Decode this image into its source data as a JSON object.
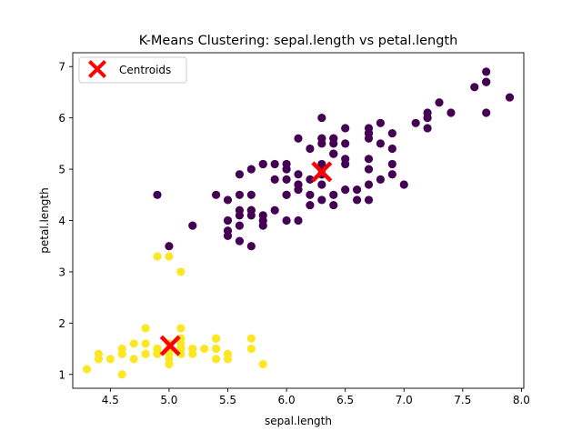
{
  "chart_data": {
    "type": "scatter",
    "title": "K-Means Clustering: sepal.length vs petal.length",
    "xlabel": "sepal.length",
    "ylabel": "petal.length",
    "xlim": [
      4.18,
      8.02
    ],
    "ylim": [
      0.73,
      7.27
    ],
    "xticks": [
      "4.5",
      "5.0",
      "5.5",
      "6.0",
      "6.5",
      "7.0",
      "7.5",
      "8.0"
    ],
    "yticks": [
      "1",
      "2",
      "3",
      "4",
      "5",
      "6",
      "7"
    ],
    "grid": false,
    "legend_position": "upper-left",
    "legend": [
      {
        "label": "Centroids",
        "marker": "X",
        "color": "#ff0000"
      }
    ],
    "colors": {
      "cluster_0": "#440154",
      "cluster_1": "#fde725",
      "centroid": "#ff0000"
    },
    "series": [
      {
        "cluster": 1,
        "points": [
          [
            5.1,
            1.4
          ],
          [
            4.9,
            1.4
          ],
          [
            4.7,
            1.3
          ],
          [
            4.6,
            1.5
          ],
          [
            5.0,
            1.4
          ],
          [
            5.4,
            1.7
          ],
          [
            4.6,
            1.4
          ],
          [
            5.0,
            1.5
          ],
          [
            4.4,
            1.4
          ],
          [
            4.9,
            1.5
          ],
          [
            5.4,
            1.5
          ],
          [
            4.8,
            1.6
          ],
          [
            4.8,
            1.4
          ],
          [
            4.3,
            1.1
          ],
          [
            5.8,
            1.2
          ],
          [
            5.7,
            1.5
          ],
          [
            5.4,
            1.3
          ],
          [
            5.1,
            1.4
          ],
          [
            5.7,
            1.7
          ],
          [
            5.1,
            1.5
          ],
          [
            5.4,
            1.7
          ],
          [
            5.1,
            1.5
          ],
          [
            4.6,
            1.0
          ],
          [
            5.1,
            1.7
          ],
          [
            4.8,
            1.9
          ],
          [
            5.0,
            1.6
          ],
          [
            5.0,
            1.6
          ],
          [
            5.2,
            1.5
          ],
          [
            5.2,
            1.4
          ],
          [
            4.7,
            1.6
          ],
          [
            4.8,
            1.6
          ],
          [
            5.4,
            1.5
          ],
          [
            5.2,
            1.5
          ],
          [
            5.5,
            1.4
          ],
          [
            4.9,
            1.5
          ],
          [
            5.0,
            1.2
          ],
          [
            5.5,
            1.3
          ],
          [
            4.9,
            1.4
          ],
          [
            4.4,
            1.3
          ],
          [
            5.1,
            1.5
          ],
          [
            5.0,
            1.3
          ],
          [
            4.5,
            1.3
          ],
          [
            4.4,
            1.3
          ],
          [
            5.0,
            1.6
          ],
          [
            5.1,
            1.9
          ],
          [
            4.8,
            1.4
          ],
          [
            5.1,
            1.6
          ],
          [
            4.6,
            1.4
          ],
          [
            5.3,
            1.5
          ],
          [
            5.0,
            1.4
          ],
          [
            5.1,
            3.0
          ],
          [
            4.9,
            3.3
          ],
          [
            5.0,
            3.3
          ]
        ]
      },
      {
        "cluster": 0,
        "points": [
          [
            7.0,
            4.7
          ],
          [
            6.4,
            4.5
          ],
          [
            6.9,
            4.9
          ],
          [
            5.5,
            4.0
          ],
          [
            6.5,
            4.6
          ],
          [
            5.7,
            4.5
          ],
          [
            6.3,
            4.7
          ],
          [
            6.6,
            4.6
          ],
          [
            5.2,
            3.9
          ],
          [
            5.9,
            4.2
          ],
          [
            6.0,
            4.0
          ],
          [
            6.1,
            4.7
          ],
          [
            5.6,
            3.6
          ],
          [
            6.7,
            4.4
          ],
          [
            5.6,
            4.5
          ],
          [
            5.8,
            4.1
          ],
          [
            6.2,
            4.5
          ],
          [
            5.6,
            3.9
          ],
          [
            5.9,
            4.8
          ],
          [
            6.1,
            4.0
          ],
          [
            6.3,
            4.9
          ],
          [
            6.1,
            4.7
          ],
          [
            6.4,
            4.3
          ],
          [
            6.6,
            4.4
          ],
          [
            6.8,
            4.8
          ],
          [
            6.7,
            5.0
          ],
          [
            6.0,
            4.5
          ],
          [
            5.7,
            3.5
          ],
          [
            5.5,
            3.8
          ],
          [
            5.5,
            3.7
          ],
          [
            5.8,
            3.9
          ],
          [
            6.0,
            5.1
          ],
          [
            5.4,
            4.5
          ],
          [
            6.0,
            4.5
          ],
          [
            6.7,
            4.7
          ],
          [
            6.3,
            4.4
          ],
          [
            5.6,
            4.1
          ],
          [
            5.5,
            4.4
          ],
          [
            6.1,
            4.6
          ],
          [
            5.8,
            4.0
          ],
          [
            5.6,
            4.2
          ],
          [
            5.7,
            4.2
          ],
          [
            5.7,
            4.2
          ],
          [
            6.2,
            4.3
          ],
          [
            5.7,
            4.1
          ],
          [
            4.9,
            4.5
          ],
          [
            5.0,
            3.5
          ],
          [
            6.3,
            6.0
          ],
          [
            5.8,
            5.1
          ],
          [
            7.1,
            5.9
          ],
          [
            6.3,
            5.6
          ],
          [
            6.5,
            5.8
          ],
          [
            7.6,
            6.6
          ],
          [
            7.3,
            6.3
          ],
          [
            6.7,
            5.8
          ],
          [
            7.2,
            6.1
          ],
          [
            6.5,
            5.1
          ],
          [
            6.4,
            5.3
          ],
          [
            6.8,
            5.5
          ],
          [
            5.7,
            5.0
          ],
          [
            5.8,
            5.1
          ],
          [
            6.4,
            5.3
          ],
          [
            6.5,
            5.5
          ],
          [
            7.7,
            6.7
          ],
          [
            7.7,
            6.9
          ],
          [
            6.0,
            5.0
          ],
          [
            6.9,
            5.7
          ],
          [
            5.6,
            4.9
          ],
          [
            7.7,
            6.7
          ],
          [
            6.3,
            4.9
          ],
          [
            6.7,
            5.7
          ],
          [
            7.2,
            6.0
          ],
          [
            6.2,
            4.8
          ],
          [
            6.1,
            4.9
          ],
          [
            6.4,
            5.6
          ],
          [
            7.2,
            5.8
          ],
          [
            7.4,
            6.1
          ],
          [
            7.9,
            6.4
          ],
          [
            6.4,
            5.6
          ],
          [
            6.3,
            5.1
          ],
          [
            6.1,
            5.6
          ],
          [
            7.7,
            6.1
          ],
          [
            6.3,
            5.6
          ],
          [
            6.4,
            5.5
          ],
          [
            6.0,
            4.8
          ],
          [
            6.9,
            5.4
          ],
          [
            6.7,
            5.6
          ],
          [
            6.9,
            5.1
          ],
          [
            6.8,
            5.9
          ],
          [
            6.7,
            5.7
          ],
          [
            6.7,
            5.2
          ],
          [
            6.3,
            5.0
          ],
          [
            6.5,
            5.2
          ],
          [
            6.2,
            5.4
          ],
          [
            5.9,
            5.1
          ],
          [
            6.3,
            5.5
          ]
        ]
      }
    ],
    "centroids": [
      [
        6.3,
        4.95
      ],
      [
        5.01,
        1.56
      ]
    ]
  }
}
